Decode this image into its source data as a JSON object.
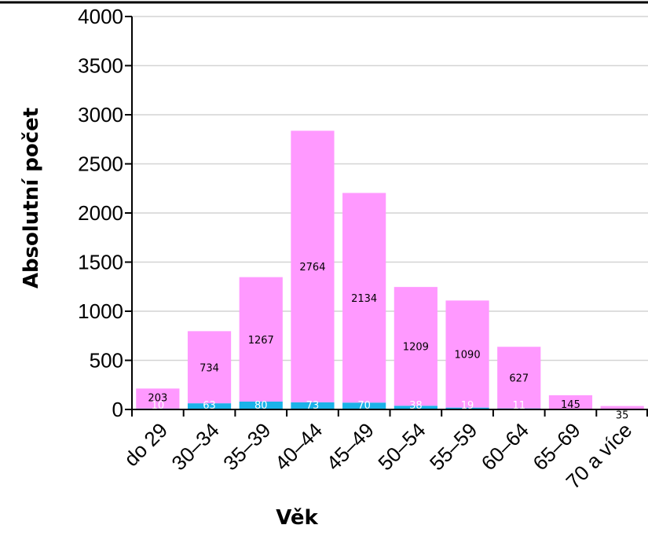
{
  "chart_data": {
    "type": "bar",
    "stacked": true,
    "categories": [
      "do 29",
      "30–34",
      "35–39",
      "40–44",
      "45–49",
      "50–54",
      "55–59",
      "60–64",
      "65–69",
      "70 a více"
    ],
    "series": [
      {
        "values": [
          10,
          63,
          80,
          73,
          70,
          38,
          19,
          11,
          0,
          0
        ],
        "color": "#1BB2E8",
        "label_color": "#ffffff"
      },
      {
        "values": [
          203,
          734,
          1267,
          2764,
          2134,
          1209,
          1090,
          627,
          145,
          35
        ],
        "color": "#FF99FF",
        "label_color": "#000000"
      }
    ],
    "first_series_labels": [
      "10",
      "63",
      "80",
      "73",
      "70",
      "38",
      "19",
      "11",
      "",
      ""
    ],
    "xlabel": "Věk",
    "ylabel": "Absolutní počet",
    "ylim": [
      0,
      4000
    ],
    "yticks": [
      0,
      500,
      1000,
      1500,
      2000,
      2500,
      3000,
      3500,
      4000
    ],
    "grid": true
  }
}
